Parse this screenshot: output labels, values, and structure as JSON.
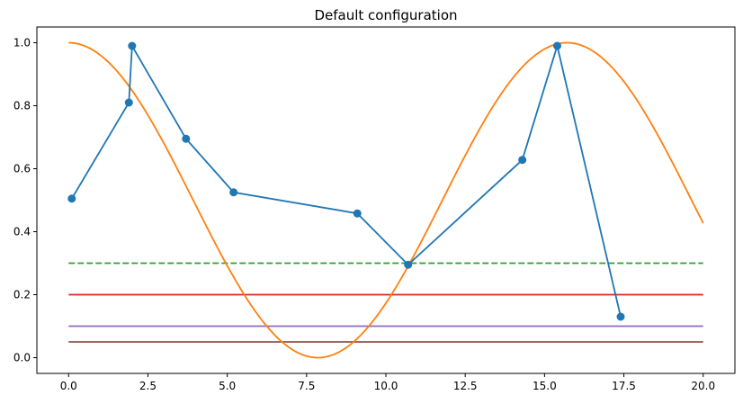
{
  "chart_data": {
    "type": "line",
    "title": "Default configuration",
    "xlabel": "",
    "ylabel": "",
    "xlim": [
      -1.0,
      21.0
    ],
    "ylim": [
      -0.05,
      1.05
    ],
    "grid": false,
    "legend": "none",
    "x_ticks": [
      0.0,
      2.5,
      5.0,
      7.5,
      10.0,
      12.5,
      15.0,
      17.5,
      20.0
    ],
    "x_tick_labels": [
      "0.0",
      "2.5",
      "5.0",
      "7.5",
      "10.0",
      "12.5",
      "15.0",
      "17.5",
      "20.0"
    ],
    "y_ticks": [
      0.0,
      0.2,
      0.4,
      0.6,
      0.8,
      1.0
    ],
    "y_tick_labels": [
      "0.0",
      "0.2",
      "0.4",
      "0.6",
      "0.8",
      "1.0"
    ],
    "series": [
      {
        "type": "line_markers",
        "color": "#1f77b4",
        "x": [
          0.1,
          1.9,
          2.0,
          3.7,
          5.2,
          9.1,
          10.7,
          14.3,
          15.4,
          17.4
        ],
        "y": [
          0.505,
          0.81,
          0.99,
          0.695,
          0.525,
          0.458,
          0.295,
          0.628,
          0.99,
          0.13
        ]
      },
      {
        "type": "function",
        "color": "#ff7f0e",
        "function": "(1 + cos(0.4 x)) / 2",
        "x_range": [
          0,
          20
        ]
      },
      {
        "type": "hline",
        "color": "#2ca02c",
        "style": "dashed",
        "y": 0.3,
        "x_range": [
          0,
          20
        ]
      },
      {
        "type": "hline",
        "color": "#d62728",
        "style": "solid",
        "y": 0.2,
        "x_range": [
          0,
          20
        ]
      },
      {
        "type": "hline",
        "color": "#9467bd",
        "style": "solid",
        "y": 0.1,
        "x_range": [
          0,
          20
        ]
      },
      {
        "type": "hline",
        "color": "#8c564b",
        "style": "solid",
        "y": 0.05,
        "x_range": [
          0,
          20
        ]
      }
    ]
  }
}
